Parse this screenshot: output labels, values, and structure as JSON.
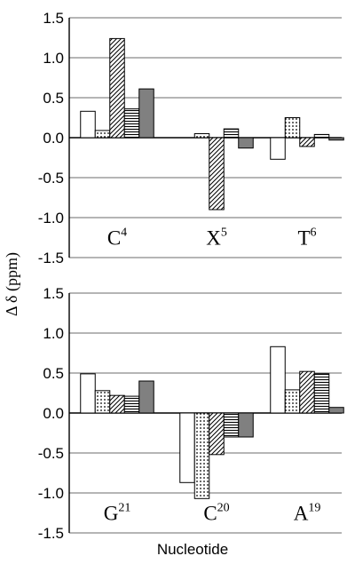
{
  "chart_data": {
    "type": "bar",
    "ylabel": "Δ δ (ppm)",
    "xlabel": "Nucleotide",
    "ylim": [
      -1.5,
      1.5
    ],
    "yticks": [
      "1.5",
      "1.0",
      "0.5",
      "0.0",
      "-0.5",
      "-1.0",
      "-1.5"
    ],
    "grid": true,
    "series_styles": [
      {
        "fill": "#ffffff",
        "pattern": "none"
      },
      {
        "fill": "#ffffff",
        "pattern": "dots"
      },
      {
        "fill": "#ffffff",
        "pattern": "diagonal"
      },
      {
        "fill": "#ffffff",
        "pattern": "horizontal"
      },
      {
        "fill": "#808080",
        "pattern": "solid"
      }
    ],
    "panels": [
      {
        "groups": [
          {
            "base": "C",
            "num": "4",
            "values": [
              0.33,
              0.09,
              1.24,
              0.36,
              0.61
            ]
          },
          {
            "base": "X",
            "num": "5",
            "values": [
              null,
              0.05,
              -0.9,
              0.11,
              -0.13
            ]
          },
          {
            "base": "T",
            "num": "6",
            "values": [
              -0.27,
              0.25,
              -0.11,
              0.04,
              -0.03
            ]
          }
        ]
      },
      {
        "groups": [
          {
            "base": "G",
            "num": "21",
            "values": [
              0.49,
              0.28,
              0.22,
              0.21,
              0.4
            ]
          },
          {
            "base": "C",
            "num": "20",
            "values": [
              -0.87,
              -1.07,
              -0.52,
              -0.3,
              -0.3
            ]
          },
          {
            "base": "A",
            "num": "19",
            "values": [
              0.83,
              0.29,
              0.52,
              0.49,
              0.07
            ]
          }
        ]
      }
    ]
  }
}
